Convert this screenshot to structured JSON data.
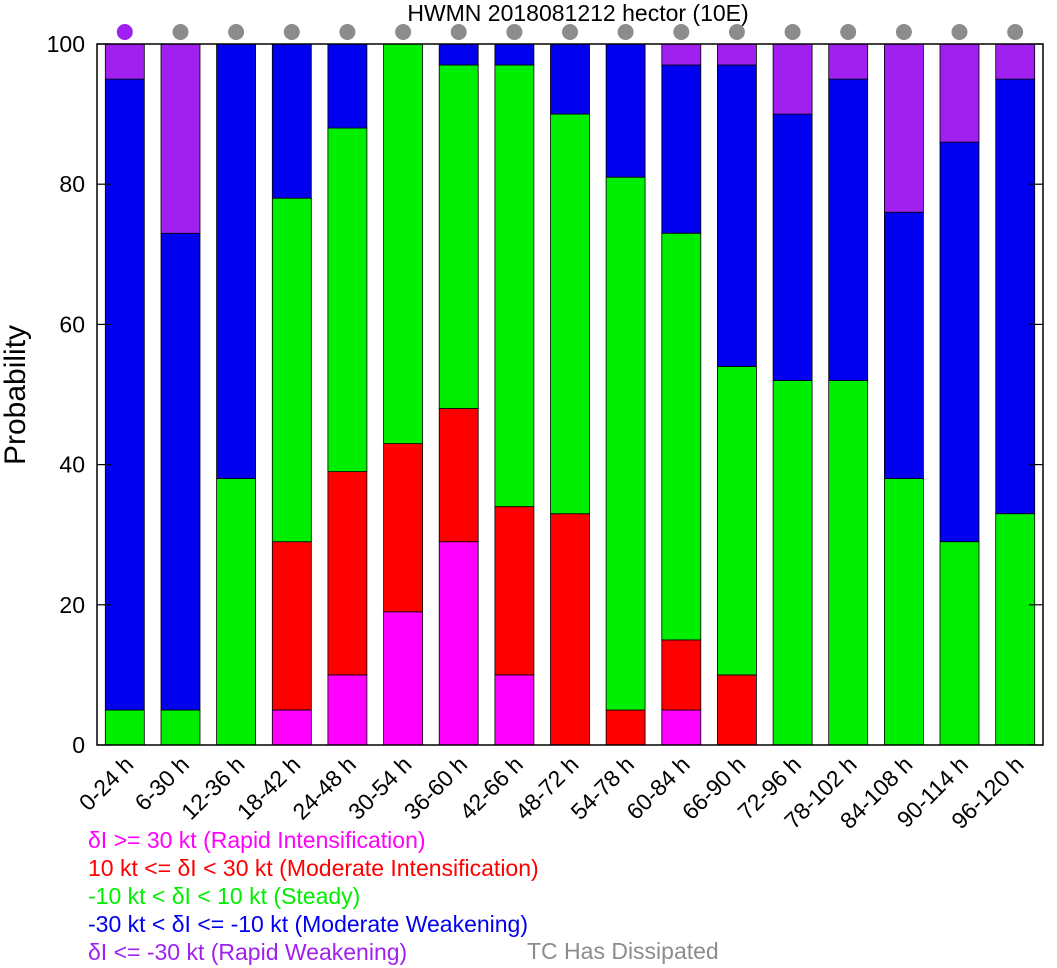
{
  "chart_data": {
    "type": "bar",
    "stacked": true,
    "title": "HWMN 2018081212 hector (10E)",
    "ylabel": "Probability",
    "xlabel": "",
    "ylim": [
      0,
      100
    ],
    "yticks": [
      0,
      20,
      40,
      60,
      80,
      100
    ],
    "categories": [
      "0-24 h",
      "6-30 h",
      "12-36 h",
      "18-42 h",
      "24-48 h",
      "30-54 h",
      "36-60 h",
      "42-66 h",
      "48-72 h",
      "54-78 h",
      "60-84 h",
      "66-90 h",
      "72-96 h",
      "78-102 h",
      "84-108 h",
      "90-114 h",
      "96-120 h"
    ],
    "series": [
      {
        "name": "δI >= 30 kt (Rapid Intensification)",
        "color": "#ff00ff",
        "values": [
          0,
          0,
          0,
          5,
          10,
          19,
          29,
          10,
          0,
          0,
          5,
          0,
          0,
          0,
          0,
          0,
          0
        ]
      },
      {
        "name": "10 kt <= δI < 30 kt (Moderate Intensification)",
        "color": "#ff0000",
        "values": [
          0,
          0,
          0,
          24,
          29,
          24,
          19,
          24,
          33,
          5,
          10,
          10,
          0,
          0,
          0,
          0,
          0
        ]
      },
      {
        "name": "-10 kt < δI < 10 kt (Steady)",
        "color": "#00ee00",
        "values": [
          5,
          5,
          38,
          49,
          49,
          57,
          49,
          63,
          57,
          76,
          58,
          44,
          52,
          52,
          38,
          29,
          33
        ]
      },
      {
        "name": "-30 kt < δI <= -10 kt (Moderate Weakening)",
        "color": "#0000ee",
        "values": [
          90,
          68,
          62,
          22,
          12,
          0,
          3,
          3,
          10,
          19,
          24,
          43,
          38,
          43,
          38,
          57,
          62
        ]
      },
      {
        "name": "δI <= -30 kt (Rapid Weakening)",
        "color": "#a020f0",
        "values": [
          5,
          27,
          0,
          0,
          0,
          0,
          0,
          0,
          0,
          0,
          3,
          3,
          10,
          5,
          24,
          14,
          5
        ]
      }
    ],
    "dissipated_label": "TC Has Dissipated",
    "dissipated_color": "#8c8c8c",
    "indicator_dots": [
      "rw",
      "none",
      "none",
      "none",
      "none",
      "none",
      "none",
      "none",
      "none",
      "none",
      "none",
      "none",
      "none",
      "none",
      "none",
      "none",
      "none"
    ]
  }
}
